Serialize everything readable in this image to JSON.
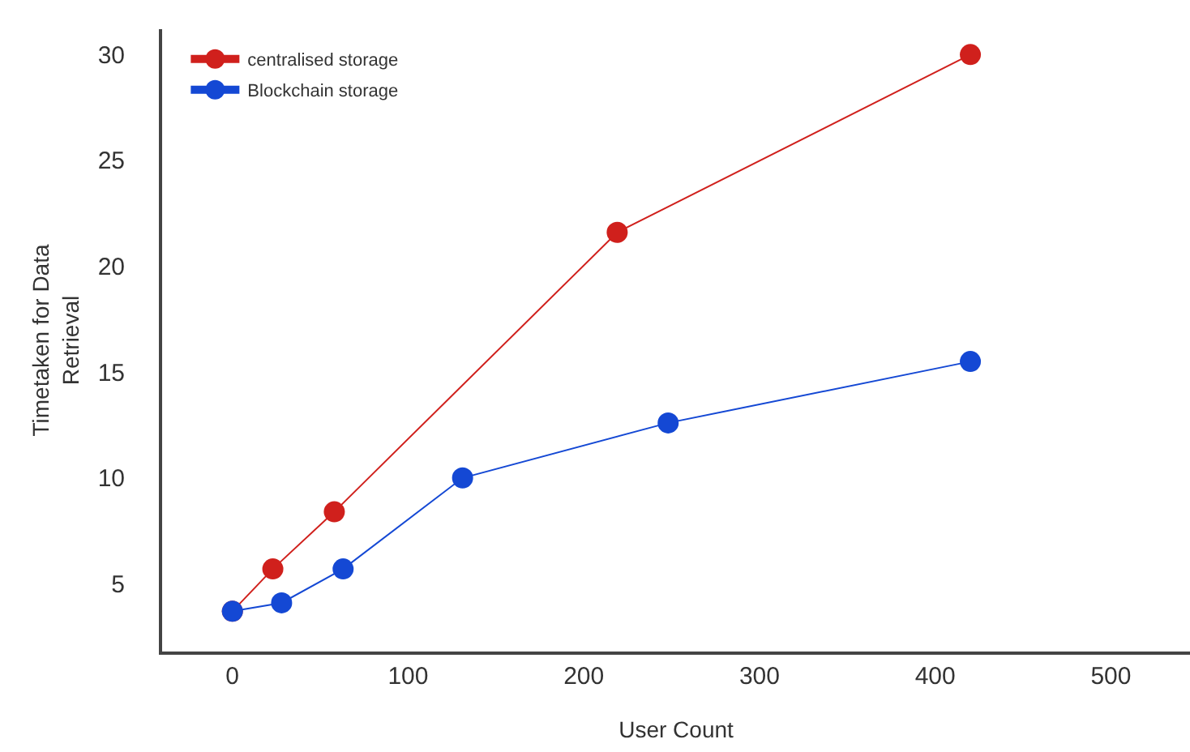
{
  "chart_data": {
    "type": "line",
    "xlabel": "User Count",
    "ylabel": "Timetaken for Data\nRetrieval",
    "series": [
      {
        "name": "centralised storage",
        "color": "#d0201c",
        "x": [
          0,
          23,
          58,
          219,
          420
        ],
        "values": [
          3.7,
          5.7,
          8.4,
          21.6,
          30
        ]
      },
      {
        "name": "Blockchain storage",
        "color": "#1448d4",
        "x": [
          0,
          28,
          63,
          131,
          248,
          420
        ],
        "values": [
          3.7,
          4.1,
          5.7,
          10,
          12.6,
          15.5
        ]
      }
    ],
    "xlim": [
      -40,
      545
    ],
    "ylim": [
      1.8,
      31.2
    ],
    "xticks": [
      0,
      100,
      200,
      300,
      400,
      500
    ],
    "yticks": [
      5,
      10,
      15,
      20,
      25,
      30
    ],
    "grid": false,
    "legend": "top left",
    "marker": "circle",
    "line_style": "solid"
  }
}
